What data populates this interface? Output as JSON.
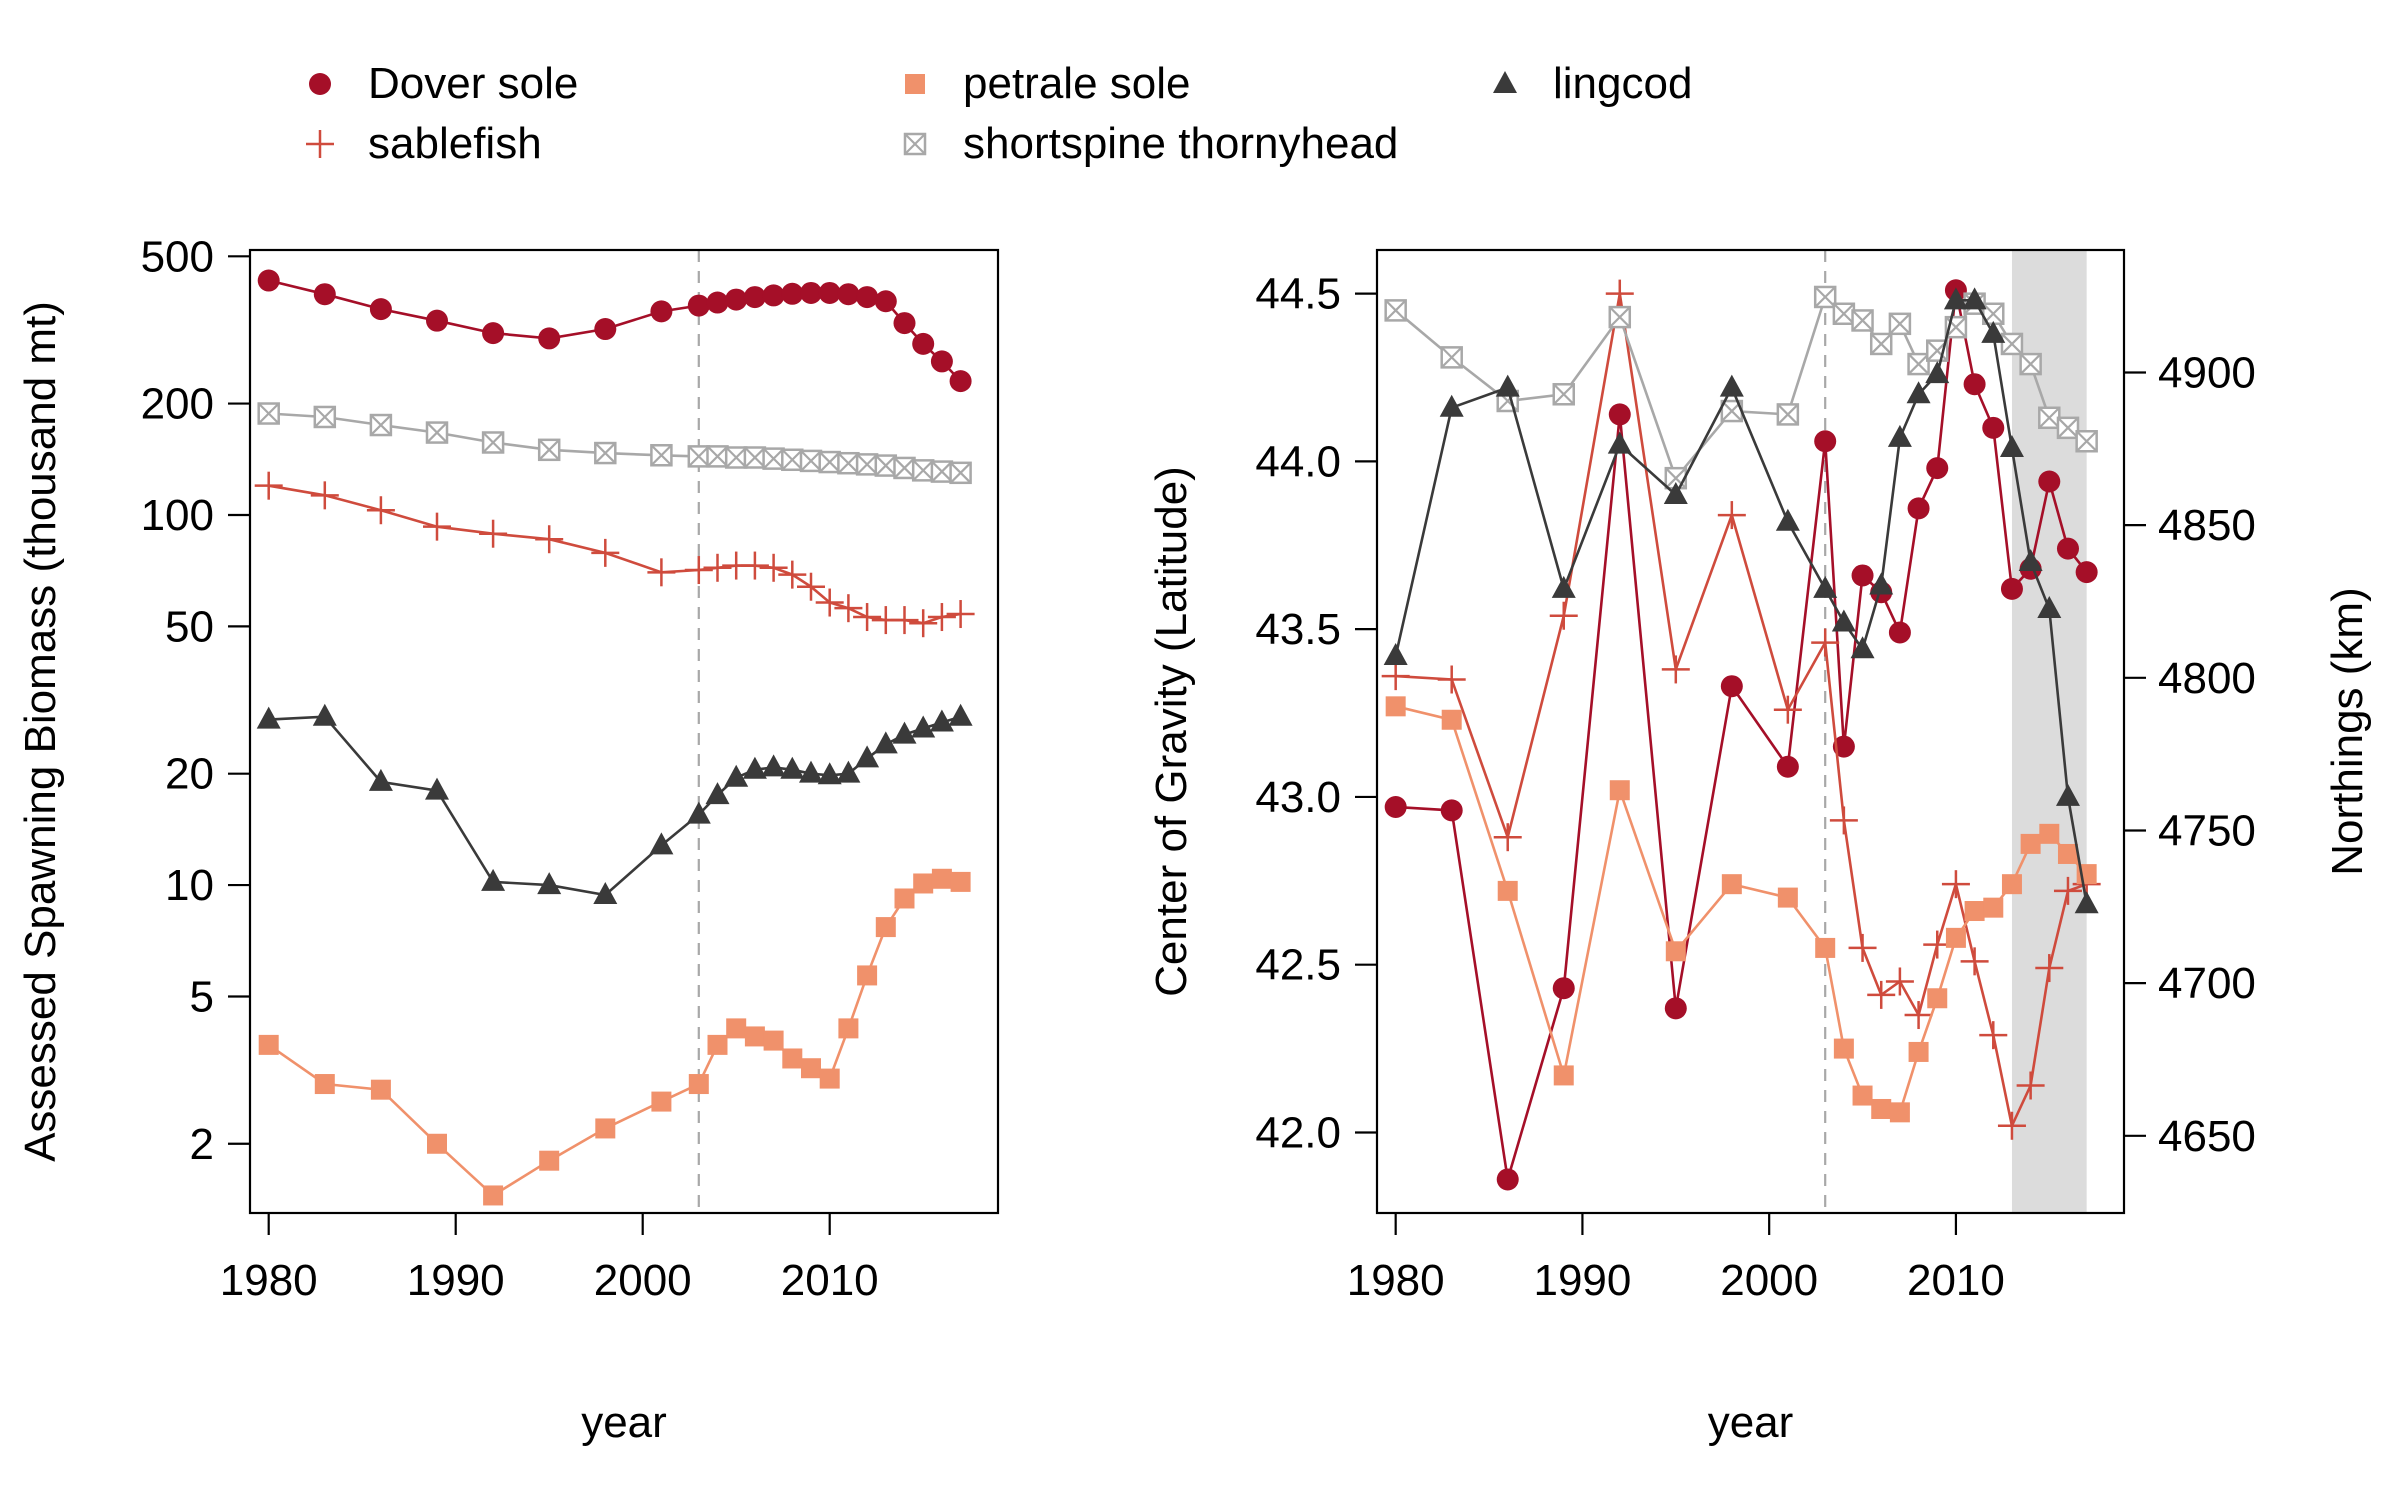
{
  "legend": {
    "items": [
      {
        "label": "Dover sole",
        "key": "dover"
      },
      {
        "label": "sablefish",
        "key": "sable"
      },
      {
        "label": "petrale sole",
        "key": "petrale"
      },
      {
        "label": "shortspine thornyhead",
        "key": "shortspine"
      },
      {
        "label": "lingcod",
        "key": "lingcod"
      }
    ]
  },
  "styles": {
    "dover": {
      "color": "#a50f28",
      "marker": "circle"
    },
    "sable": {
      "color": "#cf4b3d",
      "marker": "plus"
    },
    "petrale": {
      "color": "#f0916b",
      "marker": "square"
    },
    "shortspine": {
      "color": "#a8a8a8",
      "marker": "square-x"
    },
    "lingcod": {
      "color": "#3a3a3a",
      "marker": "triangle"
    }
  },
  "chart_data": [
    {
      "type": "line",
      "xlabel": "year",
      "ylabel": "Assessed Spawning Biomass (thousand mt)",
      "xlim": [
        1979,
        2019
      ],
      "ylim": [
        1.3,
        520
      ],
      "log_y": true,
      "xticks": [
        1980,
        1990,
        2000,
        2010
      ],
      "yticks": [
        2,
        5,
        10,
        20,
        50,
        100,
        200,
        500
      ],
      "vline": 2003,
      "series": [
        {
          "name": "Dover sole",
          "key": "dover",
          "x": [
            1980,
            1983,
            1986,
            1989,
            1992,
            1995,
            1998,
            2001,
            2003,
            2004,
            2005,
            2006,
            2007,
            2008,
            2009,
            2010,
            2011,
            2012,
            2013,
            2014,
            2015,
            2016,
            2017
          ],
          "y": [
            430,
            395,
            360,
            335,
            310,
            300,
            318,
            355,
            368,
            375,
            382,
            388,
            392,
            396,
            398,
            398,
            395,
            388,
            378,
            330,
            290,
            260,
            230
          ]
        },
        {
          "name": "sablefish",
          "key": "sable",
          "x": [
            1980,
            1983,
            1986,
            1989,
            1992,
            1995,
            1998,
            2001,
            2003,
            2004,
            2005,
            2006,
            2007,
            2008,
            2009,
            2010,
            2011,
            2012,
            2013,
            2014,
            2015,
            2016,
            2017
          ],
          "y": [
            120,
            113,
            103,
            93,
            89,
            86,
            79,
            70,
            71,
            72,
            73,
            73,
            72,
            69,
            64,
            58,
            56,
            53,
            52,
            52,
            51,
            53,
            54
          ]
        },
        {
          "name": "petrale sole",
          "key": "petrale",
          "x": [
            1980,
            1983,
            1986,
            1989,
            1992,
            1995,
            1998,
            2001,
            2003,
            2004,
            2005,
            2006,
            2007,
            2008,
            2009,
            2010,
            2011,
            2012,
            2013,
            2014,
            2015,
            2016,
            2017
          ],
          "y": [
            3.7,
            2.9,
            2.8,
            2.0,
            1.45,
            1.8,
            2.2,
            2.6,
            2.9,
            3.7,
            4.1,
            3.9,
            3.8,
            3.4,
            3.2,
            3.0,
            4.1,
            5.7,
            7.7,
            9.2,
            10.1,
            10.4,
            10.2
          ]
        },
        {
          "name": "shortspine thornyhead",
          "key": "shortspine",
          "x": [
            1980,
            1983,
            1986,
            1989,
            1992,
            1995,
            1998,
            2001,
            2003,
            2004,
            2005,
            2006,
            2007,
            2008,
            2009,
            2010,
            2011,
            2012,
            2013,
            2014,
            2015,
            2016,
            2017
          ],
          "y": [
            188,
            184,
            175,
            167,
            157,
            150,
            147,
            145,
            144,
            144,
            143,
            143,
            142,
            141,
            140,
            139,
            138,
            137,
            136,
            134,
            132,
            131,
            130
          ]
        },
        {
          "name": "lingcod",
          "key": "lingcod",
          "x": [
            1980,
            1983,
            1986,
            1989,
            1992,
            1995,
            1998,
            2001,
            2003,
            2004,
            2005,
            2006,
            2007,
            2008,
            2009,
            2010,
            2011,
            2012,
            2013,
            2014,
            2015,
            2016,
            2017
          ],
          "y": [
            28,
            28.5,
            19,
            18,
            10.2,
            10.0,
            9.4,
            12.8,
            15.5,
            17.5,
            19.5,
            20.5,
            20.8,
            20.5,
            20.0,
            19.8,
            20.0,
            22.0,
            24.0,
            25.5,
            26.5,
            27.5,
            28.5
          ]
        }
      ]
    },
    {
      "type": "line",
      "xlabel": "year",
      "ylabel": "Center of Gravity (Latitude)",
      "ylabel_right": "Northings (km)",
      "xlim": [
        1979,
        2019
      ],
      "ylim": [
        41.76,
        44.63
      ],
      "xticks": [
        1980,
        1990,
        2000,
        2010
      ],
      "yticks": [
        42.0,
        42.5,
        43.0,
        43.5,
        44.0,
        44.5
      ],
      "ytick_labels": [
        "42.0",
        "42.5",
        "43.0",
        "43.5",
        "44.0",
        "44.5"
      ],
      "right_ticks": [
        4650,
        4700,
        4750,
        4800,
        4850,
        4900
      ],
      "right_ticks_at_latitude": [
        41.99,
        42.445,
        42.9,
        43.355,
        43.81,
        44.265
      ],
      "vline": 2003,
      "shaded_x": [
        2013,
        2017
      ],
      "series": [
        {
          "name": "Dover sole",
          "key": "dover",
          "x": [
            1980,
            1983,
            1986,
            1989,
            1992,
            1995,
            1998,
            2001,
            2003,
            2004,
            2005,
            2006,
            2007,
            2008,
            2009,
            2010,
            2011,
            2012,
            2013,
            2014,
            2015,
            2016,
            2017
          ],
          "y": [
            42.97,
            42.96,
            41.86,
            42.43,
            44.14,
            42.37,
            43.33,
            43.09,
            44.06,
            43.15,
            43.66,
            43.61,
            43.49,
            43.86,
            43.98,
            44.51,
            44.23,
            44.1,
            43.62,
            43.68,
            43.94,
            43.74,
            43.67
          ]
        },
        {
          "name": "sablefish",
          "key": "sable",
          "x": [
            1980,
            1983,
            1986,
            1989,
            1992,
            1995,
            1998,
            2001,
            2003,
            2004,
            2005,
            2006,
            2007,
            2008,
            2009,
            2010,
            2011,
            2012,
            2013,
            2014,
            2015,
            2016,
            2017
          ],
          "y": [
            43.36,
            43.35,
            42.88,
            43.54,
            44.5,
            43.38,
            43.84,
            43.26,
            43.46,
            42.93,
            42.55,
            42.41,
            42.45,
            42.35,
            42.56,
            42.74,
            42.51,
            42.29,
            42.02,
            42.14,
            42.49,
            42.72,
            42.74
          ]
        },
        {
          "name": "petrale sole",
          "key": "petrale",
          "x": [
            1980,
            1983,
            1986,
            1989,
            1992,
            1995,
            1998,
            2001,
            2003,
            2004,
            2005,
            2006,
            2007,
            2008,
            2009,
            2010,
            2011,
            2012,
            2013,
            2014,
            2015,
            2016,
            2017
          ],
          "y": [
            43.27,
            43.23,
            42.72,
            42.17,
            43.02,
            42.54,
            42.74,
            42.7,
            42.55,
            42.25,
            42.11,
            42.07,
            42.06,
            42.24,
            42.4,
            42.58,
            42.66,
            42.67,
            42.74,
            42.86,
            42.89,
            42.83,
            42.77
          ]
        },
        {
          "name": "shortspine thornyhead",
          "key": "shortspine",
          "x": [
            1980,
            1983,
            1986,
            1989,
            1992,
            1995,
            1998,
            2001,
            2003,
            2004,
            2005,
            2006,
            2007,
            2008,
            2009,
            2010,
            2011,
            2012,
            2013,
            2014,
            2015,
            2016,
            2017
          ],
          "y": [
            44.45,
            44.31,
            44.18,
            44.2,
            44.43,
            43.95,
            44.15,
            44.14,
            44.49,
            44.44,
            44.42,
            44.35,
            44.41,
            44.29,
            44.33,
            44.4,
            44.47,
            44.44,
            44.35,
            44.29,
            44.13,
            44.1,
            44.06
          ]
        },
        {
          "name": "lingcod",
          "key": "lingcod",
          "x": [
            1980,
            1983,
            1986,
            1989,
            1992,
            1995,
            1998,
            2001,
            2003,
            2004,
            2005,
            2006,
            2007,
            2008,
            2009,
            2010,
            2011,
            2012,
            2013,
            2014,
            2015,
            2016,
            2017
          ],
          "y": [
            43.42,
            44.16,
            44.22,
            43.62,
            44.05,
            43.9,
            44.22,
            43.82,
            43.62,
            43.52,
            43.44,
            43.63,
            44.07,
            44.2,
            44.26,
            44.48,
            44.48,
            44.38,
            44.04,
            43.7,
            43.56,
            43.0,
            42.68
          ]
        }
      ]
    }
  ]
}
